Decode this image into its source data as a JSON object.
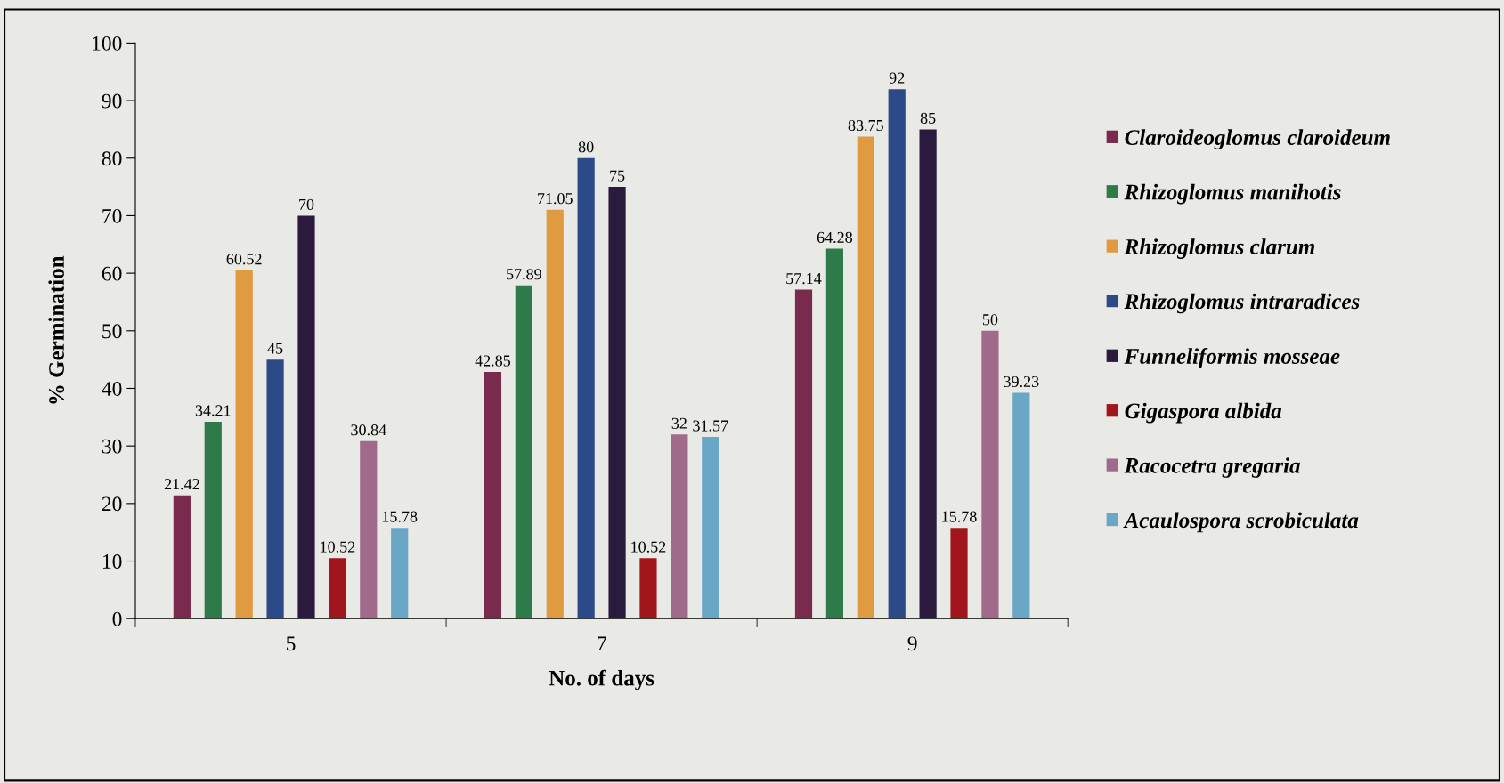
{
  "chart_data": {
    "type": "bar",
    "xlabel": "No. of days",
    "ylabel": "% Germination",
    "categories": [
      "5",
      "7",
      "9"
    ],
    "series": [
      {
        "name": "Claroideoglomus claroideum",
        "color": "#7a2a4c",
        "values": [
          21.42,
          42.85,
          57.14
        ]
      },
      {
        "name": "Rhizoglomus manihotis",
        "color": "#2e7a48",
        "values": [
          34.21,
          57.89,
          64.28
        ]
      },
      {
        "name": "Rhizoglomus clarum",
        "color": "#e09a40",
        "values": [
          60.52,
          71.05,
          83.75
        ]
      },
      {
        "name": "Rhizoglomus intraradices",
        "color": "#2c4a88",
        "values": [
          45,
          80,
          92
        ]
      },
      {
        "name": "Funneliformis mosseae",
        "color": "#2a1a3e",
        "values": [
          70,
          75,
          85
        ]
      },
      {
        "name": "Gigaspora albida",
        "color": "#a0161c",
        "values": [
          10.52,
          10.52,
          15.78
        ]
      },
      {
        "name": "Racocetra gregaria",
        "color": "#a06a8a",
        "values": [
          30.84,
          32,
          50
        ]
      },
      {
        "name": "Acaulospora scrobiculata",
        "color": "#6aa6c6",
        "values": [
          15.78,
          31.57,
          39.23
        ]
      }
    ],
    "ylim": [
      0,
      100
    ],
    "yticks": [
      0,
      10,
      20,
      30,
      40,
      50,
      60,
      70,
      80,
      90,
      100
    ],
    "data_labels": true,
    "grid": false,
    "legend": "right"
  }
}
